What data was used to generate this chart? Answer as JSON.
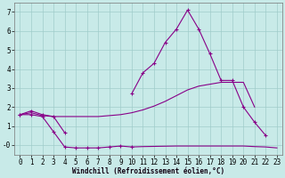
{
  "x": [
    0,
    1,
    2,
    3,
    4,
    5,
    6,
    7,
    8,
    9,
    10,
    11,
    12,
    13,
    14,
    15,
    16,
    17,
    18,
    19,
    20,
    21,
    22,
    23
  ],
  "line_max": [
    1.6,
    1.8,
    1.6,
    1.5,
    0.65,
    null,
    null,
    null,
    null,
    null,
    2.7,
    3.8,
    4.3,
    5.4,
    6.1,
    7.1,
    6.1,
    4.8,
    3.4,
    3.4,
    2.0,
    1.2,
    0.5,
    null
  ],
  "line_mean": [
    1.6,
    1.7,
    1.55,
    1.5,
    1.5,
    1.5,
    1.5,
    1.5,
    1.55,
    1.6,
    1.7,
    1.85,
    2.05,
    2.3,
    2.6,
    2.9,
    3.1,
    3.2,
    3.3,
    3.3,
    3.3,
    2.0,
    null,
    null
  ],
  "line_min": [
    1.6,
    1.6,
    1.5,
    0.7,
    -0.1,
    -0.15,
    -0.15,
    -0.15,
    -0.1,
    -0.05,
    -0.1,
    null,
    null,
    null,
    null,
    null,
    null,
    null,
    null,
    null,
    null,
    null,
    null,
    null
  ],
  "line_min2": [
    null,
    null,
    null,
    null,
    null,
    null,
    null,
    null,
    null,
    null,
    -0.1,
    -0.08,
    -0.07,
    -0.06,
    -0.05,
    -0.05,
    -0.05,
    -0.05,
    -0.05,
    -0.05,
    -0.05,
    -0.08,
    -0.1,
    -0.15
  ],
  "bg_color": "#c8eae8",
  "grid_color": "#a0ccca",
  "line_color": "#880088",
  "xlabel": "Windchill (Refroidissement éolien,°C)",
  "ylim": [
    -0.5,
    7.5
  ],
  "xlim": [
    -0.5,
    23.5
  ],
  "yticks": [
    0,
    1,
    2,
    3,
    4,
    5,
    6,
    7
  ],
  "ytick_labels": [
    "-0",
    "1",
    "2",
    "3",
    "4",
    "5",
    "6",
    "7"
  ],
  "xticks": [
    0,
    1,
    2,
    3,
    4,
    5,
    6,
    7,
    8,
    9,
    10,
    11,
    12,
    13,
    14,
    15,
    16,
    17,
    18,
    19,
    20,
    21,
    22,
    23
  ]
}
